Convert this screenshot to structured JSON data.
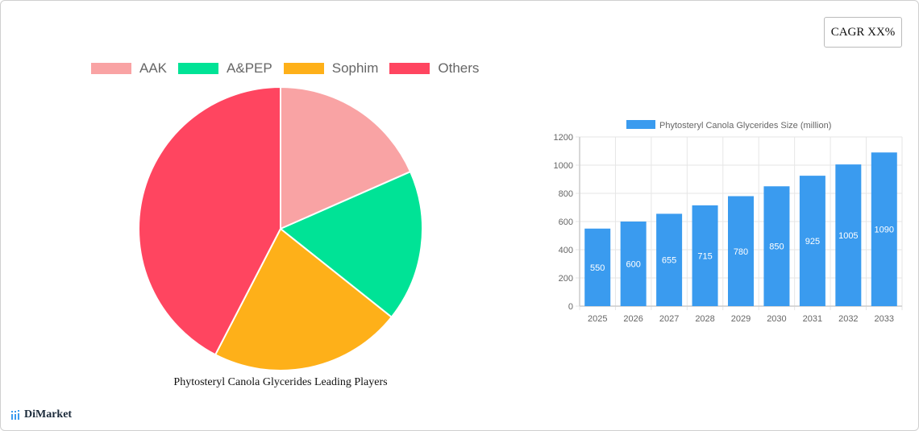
{
  "badge": {
    "cagr_label": "CAGR XX%"
  },
  "brand": {
    "name": "DiMarket",
    "icon": "bar-chart-logo-icon"
  },
  "pie_title": "Phytosteryl Canola Glycerides Leading Players",
  "pie_legend": [
    {
      "label": "AAK",
      "color": "#F9A3A4"
    },
    {
      "label": "A&PEP",
      "color": "#00E396"
    },
    {
      "label": "Sophim",
      "color": "#FEB019"
    },
    {
      "label": "Others",
      "color": "#FF4560"
    }
  ],
  "bar_legend": {
    "label": "Phytosteryl Canola Glycerides Size (million)",
    "color": "#3A9BEF"
  },
  "chart_data": [
    {
      "type": "pie",
      "title": "Phytosteryl Canola Glycerides Leading Players",
      "categories": [
        "AAK",
        "A&PEP",
        "Sophim",
        "Others"
      ],
      "values": [
        18.4,
        17.3,
        21.9,
        42.4
      ],
      "colors": [
        "#F9A3A4",
        "#00E396",
        "#FEB019",
        "#FF4560"
      ],
      "legend_position": "top"
    },
    {
      "type": "bar",
      "title": "",
      "series": [
        {
          "name": "Phytosteryl Canola Glycerides Size (million)",
          "values": [
            550,
            600,
            655,
            715,
            780,
            850,
            925,
            1005,
            1090
          ]
        }
      ],
      "categories": [
        "2025",
        "2026",
        "2027",
        "2028",
        "2029",
        "2030",
        "2031",
        "2032",
        "2033"
      ],
      "xlabel": "",
      "ylabel": "",
      "ylim": [
        0,
        1200
      ],
      "yticks": [
        0,
        200,
        400,
        600,
        800,
        1000,
        1200
      ],
      "grid": true,
      "data_labels": true,
      "legend_position": "top"
    }
  ]
}
